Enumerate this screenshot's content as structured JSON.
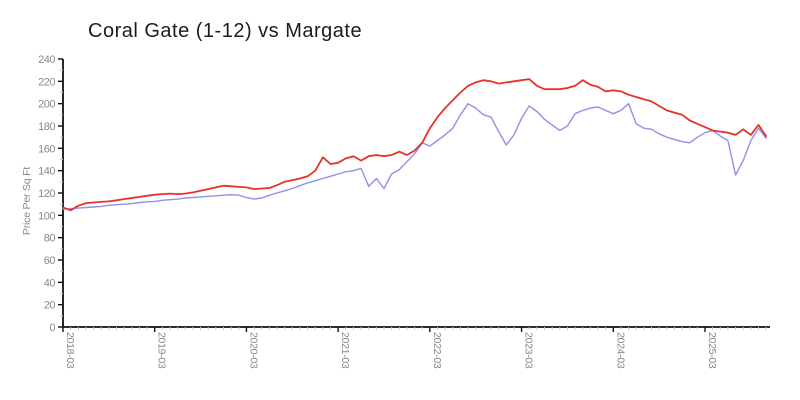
{
  "page": {
    "background": "#ffffff"
  },
  "chart_data": {
    "type": "line",
    "title": "Coral Gate (1-12) vs Margate",
    "xlabel": "",
    "ylabel": "Price Per Sq Ft",
    "ylim": [
      0,
      240
    ],
    "y_tick_step": 20,
    "y_minor_tick_step": 10,
    "grid": false,
    "legend": "none",
    "axis_color": "#111111",
    "tick_label_color": "#888888",
    "minor_tick_color": "#c9c9c9",
    "x_tick_labels": [
      "2018-03",
      "2019-03",
      "2020-03",
      "2021-03",
      "2022-03",
      "2023-03",
      "2024-03",
      "2025-03"
    ],
    "x_tick_month_indices": [
      0,
      12,
      24,
      36,
      48,
      60,
      72,
      84
    ],
    "months": [
      "2018-03",
      "2018-04",
      "2018-05",
      "2018-06",
      "2018-07",
      "2018-08",
      "2018-09",
      "2018-10",
      "2018-11",
      "2018-12",
      "2019-01",
      "2019-02",
      "2019-03",
      "2019-04",
      "2019-05",
      "2019-06",
      "2019-07",
      "2019-08",
      "2019-09",
      "2019-10",
      "2019-11",
      "2019-12",
      "2020-01",
      "2020-02",
      "2020-03",
      "2020-04",
      "2020-05",
      "2020-06",
      "2020-07",
      "2020-08",
      "2020-09",
      "2020-10",
      "2020-11",
      "2020-12",
      "2021-01",
      "2021-02",
      "2021-03",
      "2021-04",
      "2021-05",
      "2021-06",
      "2021-07",
      "2021-08",
      "2021-09",
      "2021-10",
      "2021-11",
      "2021-12",
      "2022-01",
      "2022-02",
      "2022-03",
      "2022-04",
      "2022-05",
      "2022-06",
      "2022-07",
      "2022-08",
      "2022-09",
      "2022-10",
      "2022-11",
      "2022-12",
      "2023-01",
      "2023-02",
      "2023-03",
      "2023-04",
      "2023-05",
      "2023-06",
      "2023-07",
      "2023-08",
      "2023-09",
      "2023-10",
      "2023-11",
      "2023-12",
      "2024-01",
      "2024-02",
      "2024-03",
      "2024-04",
      "2024-05",
      "2024-06",
      "2024-07",
      "2024-08",
      "2024-09",
      "2024-10",
      "2024-11",
      "2024-12",
      "2025-01",
      "2025-02",
      "2025-03",
      "2025-04",
      "2025-05",
      "2025-06",
      "2025-07",
      "2025-08",
      "2025-09",
      "2025-10",
      "2025-11"
    ],
    "series": [
      {
        "name": "Coral Gate (1-12)",
        "color": "#e5332a",
        "stroke_width": 1.8,
        "values": [
          107,
          104.5,
          108.5,
          111,
          111.5,
          112,
          112.5,
          113.5,
          114.5,
          115.5,
          116.5,
          117.5,
          118.5,
          119,
          119.5,
          119,
          119.5,
          120.5,
          122,
          123.5,
          125,
          126.5,
          126,
          125.5,
          125,
          123.5,
          124,
          124.5,
          127,
          130,
          131.5,
          133,
          135,
          140,
          152,
          146,
          147,
          151,
          153,
          149,
          153,
          154,
          153,
          154,
          157,
          154,
          158,
          165,
          178,
          188,
          196,
          203,
          210,
          216,
          219,
          221,
          220,
          218,
          219,
          220,
          221,
          222,
          216,
          213,
          213,
          213,
          214,
          216,
          221,
          217,
          215,
          211,
          212,
          211,
          208,
          206,
          204,
          202,
          198,
          194,
          192,
          190,
          185,
          182,
          179,
          176,
          175,
          174,
          172,
          177,
          172,
          181,
          171
        ]
      },
      {
        "name": "Margate",
        "color": "#9090e8",
        "stroke_width": 1.4,
        "values": [
          105.5,
          106,
          106.5,
          107,
          107.5,
          108,
          109,
          109.5,
          110,
          110.5,
          111.5,
          112,
          112.5,
          113.5,
          114,
          114.5,
          115.5,
          116,
          116.5,
          117,
          117.5,
          118,
          118.5,
          118,
          116,
          114.5,
          115.5,
          118,
          120,
          122,
          124,
          126.5,
          129,
          131,
          133,
          135,
          137,
          139,
          140,
          142,
          126,
          133,
          124,
          137,
          141,
          148,
          155,
          165,
          162,
          167,
          172,
          178,
          190,
          200,
          196,
          190,
          188,
          175,
          163,
          172,
          187,
          198,
          193,
          186,
          181,
          176,
          180,
          191,
          194,
          196,
          197,
          194,
          191,
          194,
          200,
          182,
          178,
          177,
          173,
          170,
          168,
          166,
          165,
          170,
          174,
          176,
          171,
          167,
          136,
          149,
          167,
          178,
          169
        ]
      }
    ]
  }
}
